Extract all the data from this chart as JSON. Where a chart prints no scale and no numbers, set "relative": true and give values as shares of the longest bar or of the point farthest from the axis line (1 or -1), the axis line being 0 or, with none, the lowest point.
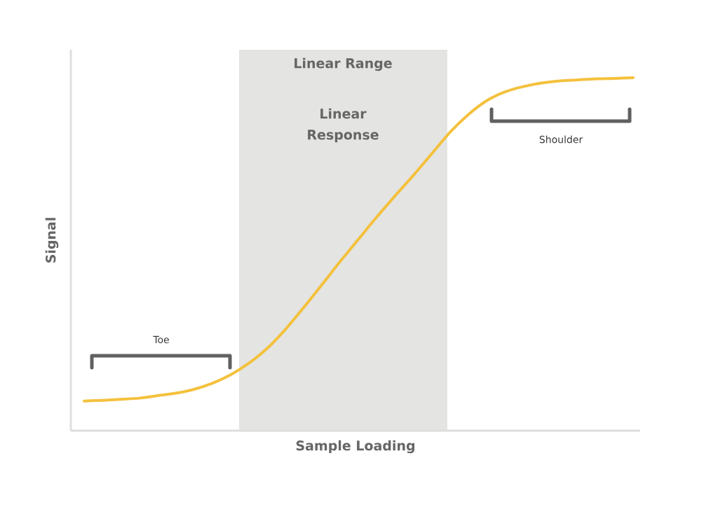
{
  "chart_data": {
    "type": "line",
    "relative": true,
    "xlabel": "Sample Loading",
    "ylabel": "Signal",
    "categories": [
      null,
      null,
      null,
      null,
      null,
      null,
      null,
      null,
      null,
      null,
      null,
      null,
      null,
      null,
      null,
      null,
      null,
      null,
      null,
      null,
      null,
      null,
      null,
      null,
      null,
      null,
      null,
      null,
      null,
      null,
      null
    ],
    "series": [
      {
        "color": "#f4c13d",
        "values": [
          0.084,
          0.086,
          0.089,
          0.092,
          0.099,
          0.106,
          0.117,
          0.134,
          0.158,
          0.191,
          0.233,
          0.287,
          0.349,
          0.414,
          0.48,
          0.543,
          0.606,
          0.666,
          0.724,
          0.785,
          0.846,
          0.896,
          0.935,
          0.96,
          0.975,
          0.985,
          0.991,
          0.994,
          0.997,
          0.998,
          1.0
        ]
      }
    ],
    "line_style": "solid",
    "annotations": [
      "Linear Range",
      "Linear Response",
      "Toe",
      "Shoulder"
    ]
  }
}
